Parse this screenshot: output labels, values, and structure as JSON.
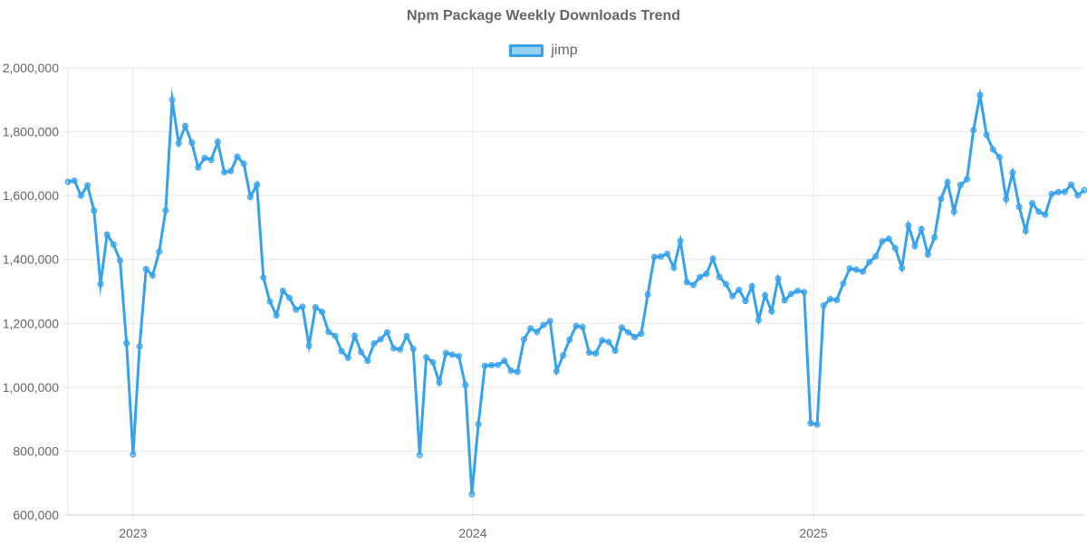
{
  "chart_data": {
    "type": "line",
    "title": "Npm Package Weekly Downloads Trend",
    "xlabel": "",
    "ylabel": "",
    "ylim": [
      600000,
      2000000
    ],
    "yticks": [
      "600,000",
      "800,000",
      "1,000,000",
      "1,200,000",
      "1,400,000",
      "1,600,000",
      "1,800,000",
      "2,000,000"
    ],
    "xticks": [
      "2023",
      "2024",
      "2025"
    ],
    "grid": true,
    "legend_position": "top",
    "line_color": "#36a2eb",
    "fill_color": "rgba(54,162,235,0.5)",
    "series": [
      {
        "name": "jimp",
        "x": [
          "2022-10-23",
          "2022-10-30",
          "2022-11-06",
          "2022-11-13",
          "2022-11-20",
          "2022-11-27",
          "2022-12-04",
          "2022-12-11",
          "2022-12-18",
          "2022-12-25",
          "2023-01-01",
          "2023-01-08",
          "2023-01-15",
          "2023-01-22",
          "2023-01-29",
          "2023-02-05",
          "2023-02-12",
          "2023-02-19",
          "2023-02-26",
          "2023-03-05",
          "2023-03-12",
          "2023-03-19",
          "2023-03-26",
          "2023-04-02",
          "2023-04-09",
          "2023-04-16",
          "2023-04-23",
          "2023-04-30",
          "2023-05-07",
          "2023-05-14",
          "2023-05-21",
          "2023-05-28",
          "2023-06-04",
          "2023-06-11",
          "2023-06-18",
          "2023-06-25",
          "2023-07-02",
          "2023-07-09",
          "2023-07-16",
          "2023-07-23",
          "2023-07-30",
          "2023-08-06",
          "2023-08-13",
          "2023-08-20",
          "2023-08-27",
          "2023-09-03",
          "2023-09-10",
          "2023-09-17",
          "2023-09-24",
          "2023-10-01",
          "2023-10-08",
          "2023-10-15",
          "2023-10-22",
          "2023-10-29",
          "2023-11-05",
          "2023-11-12",
          "2023-11-19",
          "2023-11-26",
          "2023-12-03",
          "2023-12-10",
          "2023-12-17",
          "2023-12-24",
          "2023-12-31",
          "2024-01-07",
          "2024-01-14",
          "2024-01-21",
          "2024-01-28",
          "2024-02-04",
          "2024-02-11",
          "2024-02-18",
          "2024-02-25",
          "2024-03-03",
          "2024-03-10",
          "2024-03-17",
          "2024-03-24",
          "2024-03-31",
          "2024-04-07",
          "2024-04-14",
          "2024-04-21",
          "2024-04-28",
          "2024-05-05",
          "2024-05-12",
          "2024-05-19",
          "2024-05-26",
          "2024-06-02",
          "2024-06-09",
          "2024-06-16",
          "2024-06-23",
          "2024-06-30",
          "2024-07-07",
          "2024-07-14",
          "2024-07-21",
          "2024-07-28",
          "2024-08-04",
          "2024-08-11",
          "2024-08-18",
          "2024-08-25",
          "2024-09-01",
          "2024-09-08",
          "2024-09-15",
          "2024-09-22",
          "2024-09-29",
          "2024-10-06",
          "2024-10-13",
          "2024-10-20",
          "2024-10-27",
          "2024-11-03",
          "2024-11-10",
          "2024-11-17",
          "2024-11-24",
          "2024-12-01",
          "2024-12-08",
          "2024-12-15",
          "2024-12-22",
          "2024-12-29",
          "2025-01-05",
          "2025-01-12",
          "2025-01-19",
          "2025-01-26",
          "2025-02-02",
          "2025-02-09",
          "2025-02-16",
          "2025-02-23",
          "2025-03-02",
          "2025-03-09",
          "2025-03-16",
          "2025-03-23",
          "2025-03-30",
          "2025-04-06",
          "2025-04-13",
          "2025-04-20",
          "2025-04-27",
          "2025-05-04",
          "2025-05-11",
          "2025-05-18",
          "2025-05-25",
          "2025-06-01",
          "2025-06-08",
          "2025-06-15",
          "2025-06-22",
          "2025-06-29",
          "2025-07-06",
          "2025-07-13",
          "2025-07-20",
          "2025-07-27",
          "2025-08-03",
          "2025-08-10",
          "2025-08-17",
          "2025-08-24",
          "2025-08-31",
          "2025-09-07",
          "2025-09-14",
          "2025-09-21",
          "2025-09-28",
          "2025-10-05",
          "2025-10-12",
          "2025-10-19"
        ],
        "values": [
          1643000,
          1647000,
          1600000,
          1632000,
          1553000,
          1323000,
          1478000,
          1447000,
          1397000,
          1138000,
          790000,
          1128000,
          1370000,
          1350000,
          1424000,
          1553000,
          1900000,
          1764000,
          1818000,
          1766000,
          1688000,
          1718000,
          1712000,
          1768000,
          1673000,
          1677000,
          1722000,
          1700000,
          1596000,
          1634000,
          1343000,
          1268000,
          1225000,
          1302000,
          1280000,
          1243000,
          1252000,
          1130000,
          1250000,
          1236000,
          1173000,
          1161000,
          1113000,
          1092000,
          1161000,
          1110000,
          1083000,
          1137000,
          1150000,
          1172000,
          1122000,
          1118000,
          1160000,
          1120000,
          788000,
          1094000,
          1078000,
          1015000,
          1107000,
          1102000,
          1097000,
          1007000,
          665000,
          884000,
          1067000,
          1069000,
          1070000,
          1083000,
          1052000,
          1048000,
          1150000,
          1184000,
          1173000,
          1195000,
          1207000,
          1050000,
          1099000,
          1149000,
          1192000,
          1188000,
          1108000,
          1106000,
          1147000,
          1142000,
          1114000,
          1187000,
          1172000,
          1157000,
          1168000,
          1290000,
          1408000,
          1409000,
          1418000,
          1374000,
          1458000,
          1329000,
          1320000,
          1345000,
          1355000,
          1403000,
          1345000,
          1323000,
          1285000,
          1305000,
          1270000,
          1316000,
          1210000,
          1288000,
          1238000,
          1340000,
          1272000,
          1292000,
          1302000,
          1298000,
          887000,
          883000,
          1256000,
          1276000,
          1273000,
          1325000,
          1372000,
          1368000,
          1362000,
          1392000,
          1410000,
          1457000,
          1465000,
          1435000,
          1373000,
          1507000,
          1442000,
          1495000,
          1416000,
          1469000,
          1590000,
          1642000,
          1550000,
          1633000,
          1651000,
          1805000,
          1915000,
          1790000,
          1744000,
          1720000,
          1589000,
          1672000,
          1565000,
          1490000,
          1576000,
          1550000,
          1540000,
          1605000,
          1611000,
          1612000,
          1634000,
          1601000,
          1617000
        ]
      }
    ]
  }
}
